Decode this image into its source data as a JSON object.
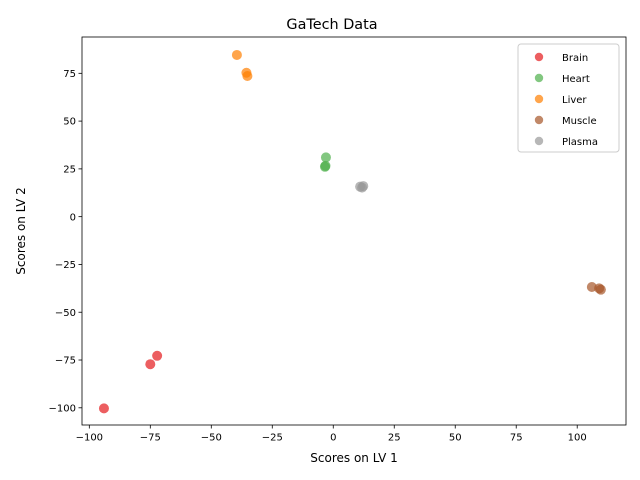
{
  "chart_data": {
    "type": "scatter",
    "title": "GaTech Data",
    "xlabel": "Scores on LV 1",
    "ylabel": "Scores on LV 2",
    "xlim": [
      -103,
      120
    ],
    "ylim": [
      -109,
      94
    ],
    "xticks": [
      -100,
      -75,
      -50,
      -25,
      0,
      25,
      50,
      75,
      100
    ],
    "yticks": [
      -100,
      -75,
      -50,
      -25,
      0,
      25,
      50,
      75
    ],
    "xtick_labels": [
      "−100",
      "−75",
      "−50",
      "−25",
      "0",
      "25",
      "50",
      "75",
      "100"
    ],
    "ytick_labels": [
      "−100",
      "−75",
      "−50",
      "−25",
      "0",
      "25",
      "50",
      "75"
    ],
    "grid": false,
    "legend_position": "top-right",
    "series": [
      {
        "name": "Brain",
        "color": "#e41a1c",
        "points": [
          [
            -94,
            -100.3
          ],
          [
            -75,
            -77.2
          ],
          [
            -72.2,
            -72.8
          ]
        ]
      },
      {
        "name": "Heart",
        "color": "#4daf4a",
        "points": [
          [
            -3,
            31
          ],
          [
            -3.2,
            26.6
          ],
          [
            -3.4,
            26.1
          ]
        ]
      },
      {
        "name": "Liver",
        "color": "#ff7f00",
        "points": [
          [
            -39.5,
            84.6
          ],
          [
            -35.6,
            75.3
          ],
          [
            -35.2,
            73.6
          ]
        ]
      },
      {
        "name": "Muscle",
        "color": "#a65628",
        "points": [
          [
            106,
            -36.8
          ],
          [
            109,
            -37.5
          ],
          [
            109.7,
            -38.2
          ]
        ]
      },
      {
        "name": "Plasma",
        "color": "#999999",
        "points": [
          [
            11,
            15.7
          ],
          [
            11.8,
            15.2
          ],
          [
            12.3,
            16
          ]
        ]
      }
    ]
  }
}
